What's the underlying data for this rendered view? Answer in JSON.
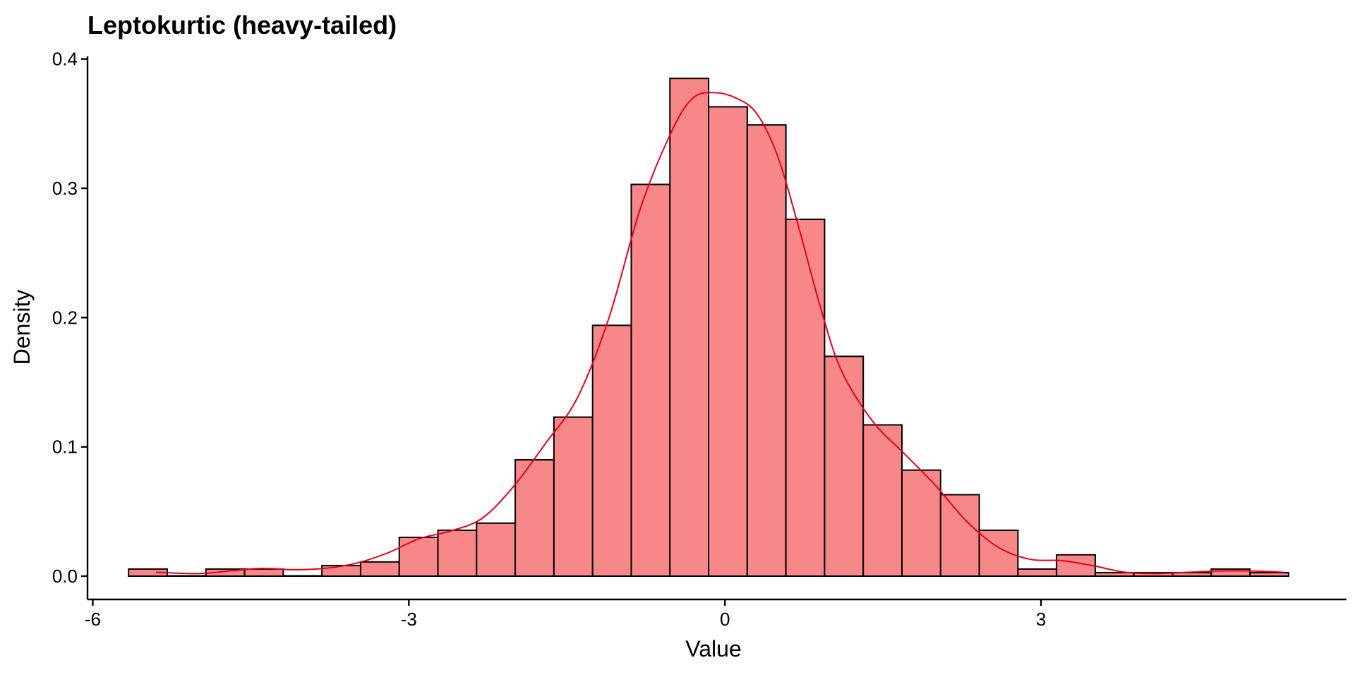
{
  "chart_data": {
    "type": "bar",
    "title": "Leptokurtic (heavy-tailed)",
    "xlabel": "Value",
    "ylabel": "Density",
    "xlim": [
      -6.05,
      5.9
    ],
    "ylim": [
      -0.018,
      0.402
    ],
    "x_ticks": [
      -6,
      -3,
      0,
      3
    ],
    "x_tick_labels": [
      "-6",
      "-3",
      "0",
      "3"
    ],
    "y_ticks": [
      0.0,
      0.1,
      0.2,
      0.3,
      0.4
    ],
    "y_tick_labels": [
      "0.0",
      "0.1",
      "0.2",
      "0.3",
      "0.4"
    ],
    "grid": false,
    "legend": "none",
    "bin_width": 0.367,
    "bins_start": -5.66,
    "bar_values": [
      0.0055,
      0.0,
      0.0055,
      0.0055,
      0.0,
      0.0082,
      0.011,
      0.03,
      0.0355,
      0.041,
      0.09,
      0.123,
      0.194,
      0.303,
      0.385,
      0.363,
      0.349,
      0.276,
      0.17,
      0.117,
      0.082,
      0.063,
      0.0355,
      0.0055,
      0.0165,
      0.0027,
      0.0027,
      0.0027,
      0.0055,
      0.0027
    ],
    "density_curve": {
      "x": [
        -5.4,
        -5.0,
        -4.7,
        -4.4,
        -4.1,
        -3.8,
        -3.5,
        -3.2,
        -2.9,
        -2.6,
        -2.3,
        -2.0,
        -1.7,
        -1.4,
        -1.1,
        -0.8,
        -0.5,
        -0.3,
        -0.1,
        0.1,
        0.3,
        0.5,
        0.7,
        0.9,
        1.1,
        1.4,
        1.7,
        2.0,
        2.3,
        2.6,
        2.9,
        3.2,
        3.5,
        3.8,
        4.1,
        4.4,
        4.7,
        5.0,
        5.3
      ],
      "y": [
        0.003,
        0.002,
        0.004,
        0.006,
        0.005,
        0.006,
        0.01,
        0.018,
        0.029,
        0.035,
        0.045,
        0.07,
        0.103,
        0.138,
        0.2,
        0.285,
        0.345,
        0.37,
        0.374,
        0.37,
        0.358,
        0.325,
        0.27,
        0.21,
        0.16,
        0.12,
        0.095,
        0.07,
        0.042,
        0.022,
        0.013,
        0.012,
        0.008,
        0.003,
        0.002,
        0.003,
        0.004,
        0.004,
        0.003
      ]
    },
    "colors": {
      "bar_fill": "#F8878A",
      "bar_stroke": "#000000",
      "density_line": "#E3001B",
      "axis": "#000000"
    }
  }
}
